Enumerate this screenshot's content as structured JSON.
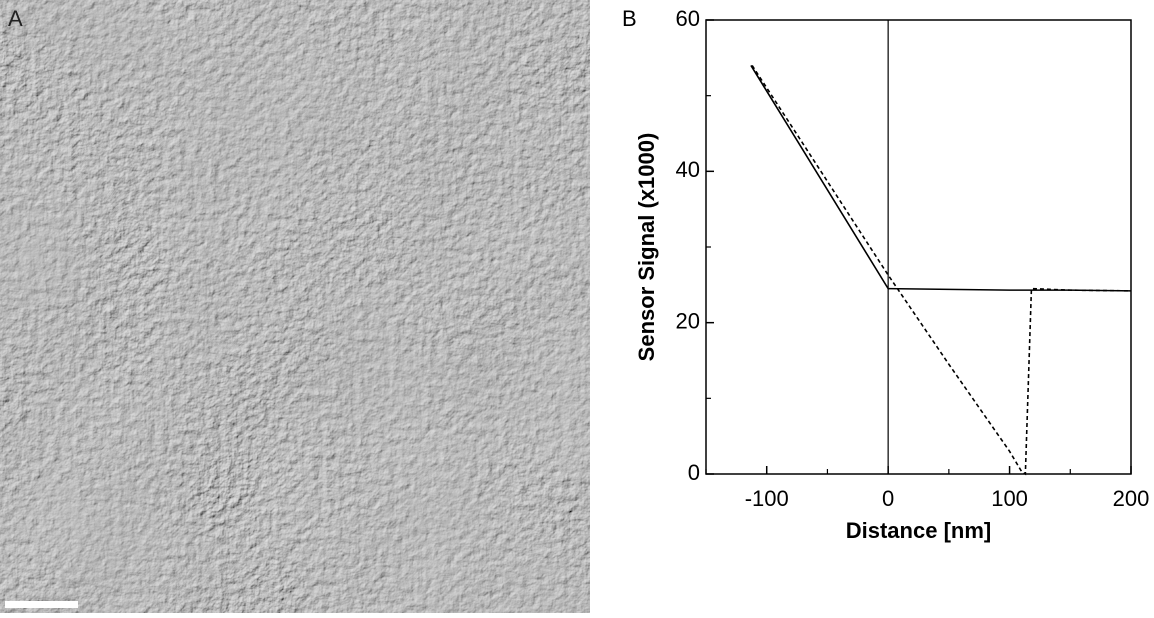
{
  "image_panel": {
    "label": "A"
  },
  "chart_data": {
    "type": "line",
    "panel_label": "B",
    "x_label": "Distance [nm]",
    "y_label": "Sensor Signal (x1000)",
    "xlim": [
      -150,
      200
    ],
    "ylim": [
      0,
      60
    ],
    "xticks": [
      -100,
      0,
      100,
      200
    ],
    "yticks": [
      0,
      20,
      40,
      60
    ],
    "xminor_ticks": [
      -150,
      -50,
      50,
      150
    ],
    "yminor_ticks": [
      10,
      30,
      50
    ],
    "vline": 0,
    "series": [
      {
        "color": "#000000",
        "style": "solid",
        "x": [
          -113,
          0,
          50,
          100,
          150,
          200
        ],
        "values": [
          54,
          24.5,
          24.4,
          24.3,
          24.3,
          24.2
        ]
      },
      {
        "color": "#000000",
        "style": "dashed",
        "x": [
          -112,
          0,
          50,
          100,
          110,
          113,
          118,
          150,
          200
        ],
        "values": [
          54,
          26.3,
          14.5,
          3,
          0.3,
          0,
          24.5,
          24.3,
          24.2
        ]
      }
    ]
  }
}
